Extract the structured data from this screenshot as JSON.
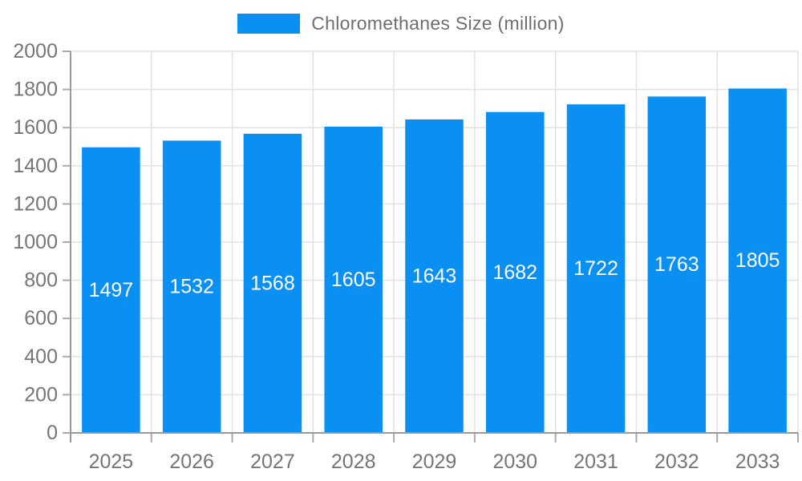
{
  "chart_data": {
    "type": "bar",
    "title": "",
    "legend": {
      "label": "Chloromethanes Size (million)",
      "position": "top"
    },
    "categories": [
      "2025",
      "2026",
      "2027",
      "2028",
      "2029",
      "2030",
      "2031",
      "2032",
      "2033"
    ],
    "values": [
      1497,
      1532,
      1568,
      1605,
      1643,
      1682,
      1722,
      1763,
      1805
    ],
    "xlabel": "",
    "ylabel": "",
    "ylim": [
      0,
      2000
    ],
    "ytick_step": 200,
    "yticks": [
      "0",
      "200",
      "400",
      "600",
      "800",
      "1000",
      "1200",
      "1400",
      "1600",
      "1800",
      "2000"
    ],
    "grid": true,
    "colors": {
      "bar": "#0a8ff2",
      "value_label": "#ffffff",
      "axis_text": "#757575",
      "legend_text": "#6e6e6e",
      "grid_line": "#e2e2e2",
      "axis_line": "#999999",
      "tick_line": "#aaaaaa",
      "background": "#ffffff"
    }
  }
}
